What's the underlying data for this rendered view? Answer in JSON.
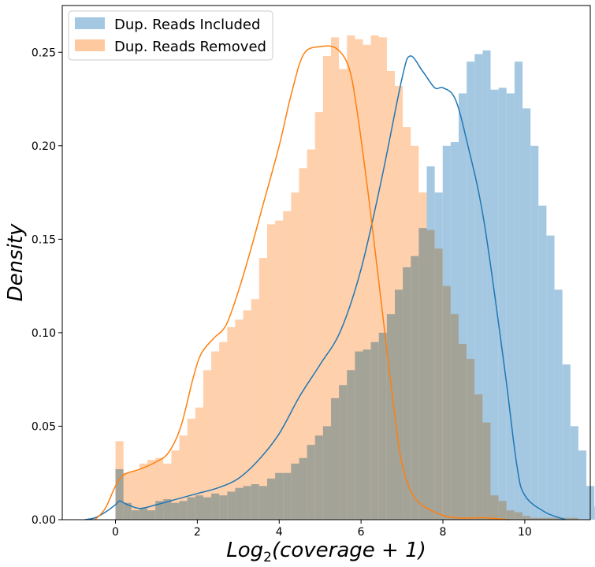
{
  "chart_data": {
    "type": "histogram+kde",
    "xlabel": "Log2(coverage+1)",
    "ylabel": "Density",
    "xlim": [
      -1.3,
      11.6
    ],
    "ylim": [
      0,
      0.275
    ],
    "xticks": [
      0,
      2,
      4,
      6,
      8,
      10
    ],
    "yticks": [
      0.0,
      0.05,
      0.1,
      0.15,
      0.2,
      0.25
    ],
    "xtick_labels": [
      "0",
      "2",
      "4",
      "6",
      "8",
      "10"
    ],
    "ytick_labels": [
      "0.00",
      "0.05",
      "0.10",
      "0.15",
      "0.20",
      "0.25"
    ],
    "legend_position": "top-left",
    "bin_start": 0.0,
    "bin_width": 0.195,
    "series": [
      {
        "name": "Dup. Reads Included",
        "bar_color": "#a4c8e1",
        "line_color": "#1f77b4",
        "bin_heights": [
          0.027,
          0.009,
          0.005,
          0.006,
          0.005,
          0.01,
          0.011,
          0.009,
          0.01,
          0.012,
          0.013,
          0.012,
          0.014,
          0.013,
          0.015,
          0.017,
          0.018,
          0.019,
          0.018,
          0.022,
          0.025,
          0.025,
          0.03,
          0.033,
          0.04,
          0.045,
          0.05,
          0.065,
          0.072,
          0.08,
          0.09,
          0.091,
          0.095,
          0.1,
          0.11,
          0.123,
          0.135,
          0.141,
          0.156,
          0.189,
          0.175,
          0.2,
          0.202,
          0.228,
          0.245,
          0.249,
          0.251,
          0.23,
          0.231,
          0.228,
          0.245,
          0.22,
          0.2,
          0.168,
          0.152,
          0.123,
          0.083,
          0.05,
          0.037,
          0.018,
          0.007,
          0.003
        ],
        "kde": [
          [
            -0.75,
            0.0
          ],
          [
            -0.5,
            0.001
          ],
          [
            -0.25,
            0.004
          ],
          [
            0.0,
            0.008
          ],
          [
            0.1,
            0.01
          ],
          [
            0.3,
            0.008
          ],
          [
            0.6,
            0.006
          ],
          [
            1.0,
            0.008
          ],
          [
            1.5,
            0.011
          ],
          [
            2.0,
            0.014
          ],
          [
            2.5,
            0.017
          ],
          [
            3.0,
            0.022
          ],
          [
            3.5,
            0.032
          ],
          [
            4.0,
            0.046
          ],
          [
            4.5,
            0.066
          ],
          [
            5.0,
            0.083
          ],
          [
            5.5,
            0.101
          ],
          [
            6.0,
            0.134
          ],
          [
            6.5,
            0.182
          ],
          [
            7.0,
            0.236
          ],
          [
            7.2,
            0.248
          ],
          [
            7.5,
            0.24
          ],
          [
            7.8,
            0.231
          ],
          [
            8.0,
            0.231
          ],
          [
            8.3,
            0.225
          ],
          [
            8.6,
            0.201
          ],
          [
            9.0,
            0.16
          ],
          [
            9.5,
            0.082
          ],
          [
            9.8,
            0.03
          ],
          [
            10.0,
            0.013
          ],
          [
            10.5,
            0.004
          ],
          [
            11.0,
            0.0
          ]
        ]
      },
      {
        "name": "Dup. Reads Removed",
        "bar_color": "#ffc9a0",
        "line_color": "#ff7f0e",
        "bin_heights": [
          0.042,
          0.025,
          0.026,
          0.03,
          0.032,
          0.033,
          0.03,
          0.037,
          0.045,
          0.054,
          0.06,
          0.08,
          0.09,
          0.095,
          0.103,
          0.107,
          0.112,
          0.118,
          0.14,
          0.158,
          0.16,
          0.165,
          0.175,
          0.188,
          0.198,
          0.218,
          0.248,
          0.258,
          0.241,
          0.259,
          0.257,
          0.254,
          0.259,
          0.258,
          0.24,
          0.232,
          0.21,
          0.2,
          0.175,
          0.155,
          0.145,
          0.125,
          0.11,
          0.094,
          0.086,
          0.067,
          0.052,
          0.013,
          0.01,
          0.005,
          0.004,
          0.002,
          0.001,
          0.001,
          0.001,
          0.001,
          0.001,
          0.001,
          0.0,
          0.0,
          0.0,
          0.0
        ],
        "kde": [
          [
            -0.5,
            0.0
          ],
          [
            -0.25,
            0.006
          ],
          [
            0.0,
            0.018
          ],
          [
            0.2,
            0.024
          ],
          [
            0.6,
            0.027
          ],
          [
            1.0,
            0.031
          ],
          [
            1.3,
            0.036
          ],
          [
            1.6,
            0.05
          ],
          [
            1.9,
            0.076
          ],
          [
            2.1,
            0.089
          ],
          [
            2.4,
            0.097
          ],
          [
            2.7,
            0.104
          ],
          [
            3.0,
            0.122
          ],
          [
            3.3,
            0.144
          ],
          [
            3.6,
            0.168
          ],
          [
            4.0,
            0.2
          ],
          [
            4.3,
            0.228
          ],
          [
            4.6,
            0.249
          ],
          [
            5.0,
            0.253
          ],
          [
            5.4,
            0.252
          ],
          [
            5.7,
            0.242
          ],
          [
            5.9,
            0.219
          ],
          [
            6.2,
            0.17
          ],
          [
            6.5,
            0.115
          ],
          [
            6.8,
            0.06
          ],
          [
            7.0,
            0.03
          ],
          [
            7.3,
            0.012
          ],
          [
            7.8,
            0.004
          ],
          [
            8.3,
            0.001
          ],
          [
            9.0,
            0.001
          ],
          [
            9.6,
            0.0
          ]
        ]
      }
    ]
  }
}
